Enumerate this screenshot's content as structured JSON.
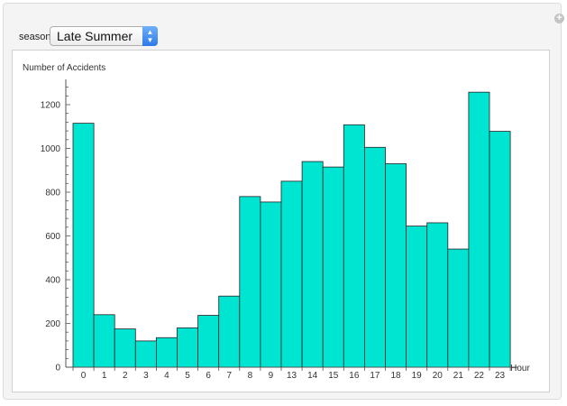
{
  "controls": {
    "season_label": "season",
    "season_value": "Late Summer",
    "select_arrow_icon": "up-down-chevron-icon",
    "expand_icon": "plus-icon"
  },
  "chart_data": {
    "type": "bar",
    "ylabel": "Number of Accidents",
    "xlabel": "Hour",
    "ylim": [
      0,
      1330
    ],
    "yticks": [
      0,
      200,
      400,
      600,
      800,
      1000,
      1200
    ],
    "categories": [
      "0",
      "1",
      "2",
      "3",
      "4",
      "5",
      "6",
      "7",
      "8",
      "9",
      "13",
      "14",
      "15",
      "16",
      "17",
      "18",
      "19",
      "20",
      "21",
      "22",
      "23"
    ],
    "values": [
      1115,
      240,
      175,
      120,
      135,
      180,
      237,
      325,
      780,
      755,
      850,
      940,
      915,
      1108,
      1005,
      930,
      645,
      660,
      540,
      1257,
      1078
    ],
    "bar_color": "#00e5d1",
    "grid": false
  }
}
